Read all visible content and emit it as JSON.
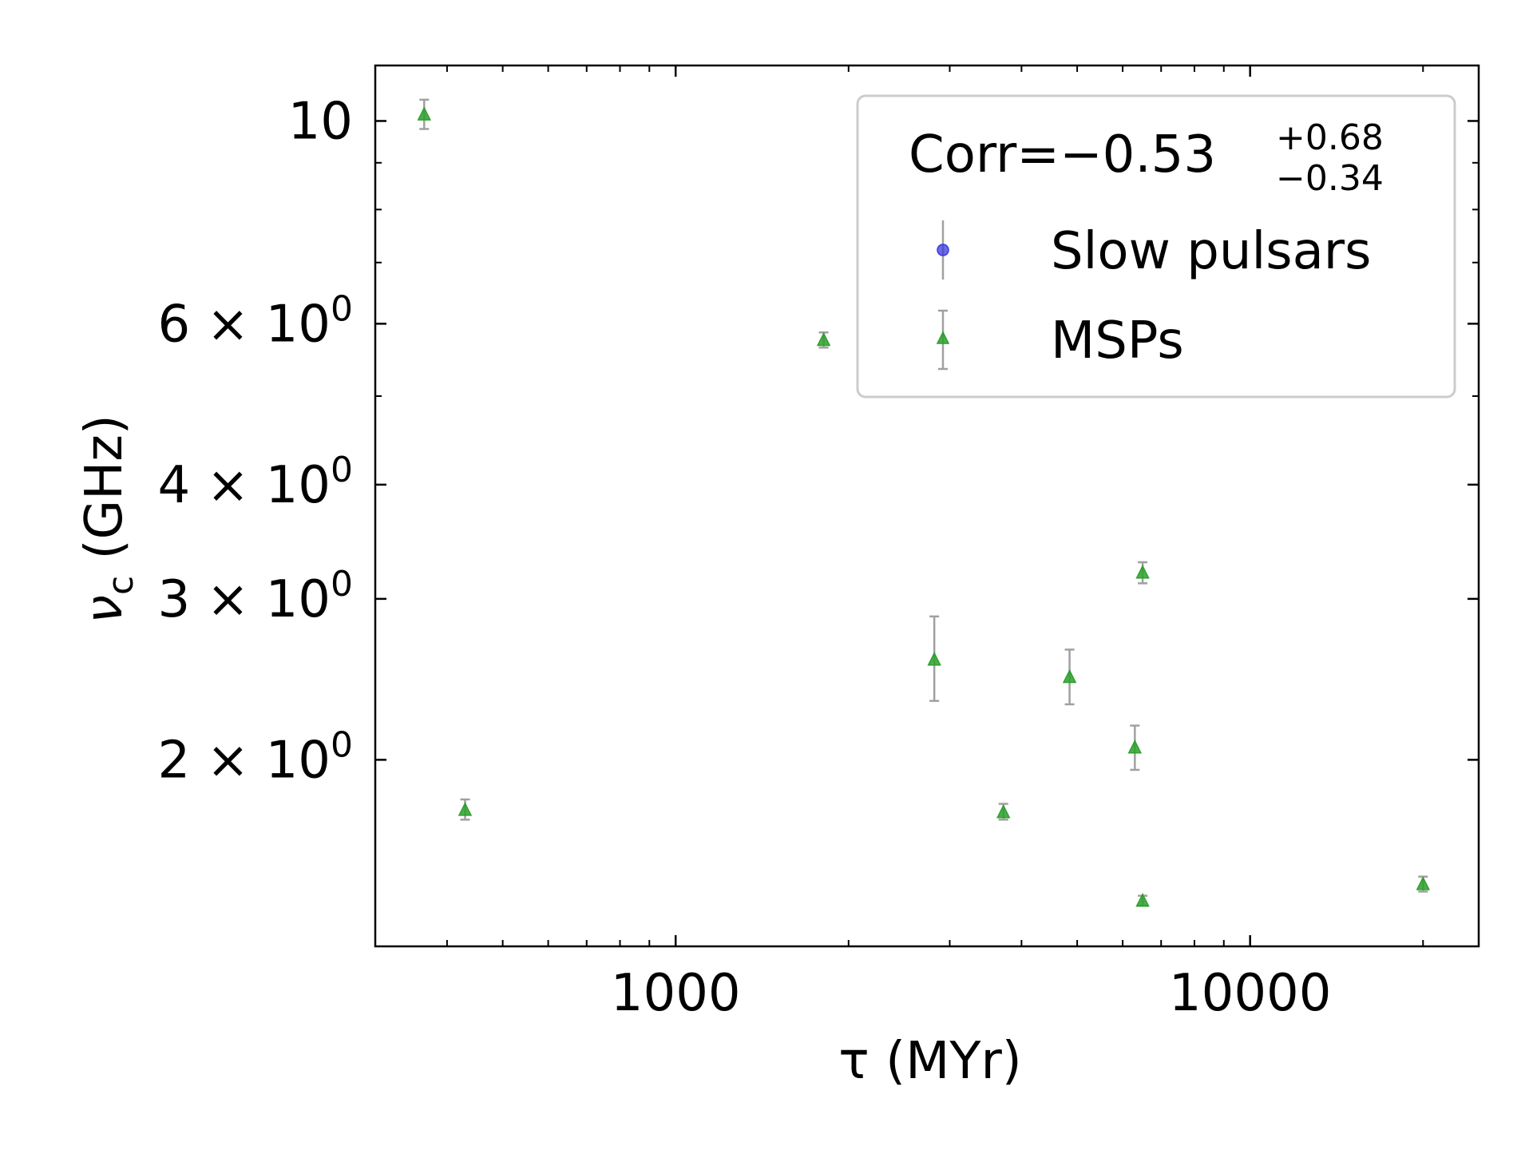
{
  "chart_data": {
    "type": "scatter",
    "title": "",
    "xlabel": "τ (MYr)",
    "ylabel": "ν",
    "ylabel_sub": "c",
    "ylabel_unit": " (GHz)",
    "x_scale": "log",
    "y_scale": "log",
    "xlim": [
      300,
      25000
    ],
    "ylim": [
      1.25,
      11.5
    ],
    "x_ticks": [
      {
        "value": 1000,
        "label": "1000"
      },
      {
        "value": 10000,
        "label": "10000"
      }
    ],
    "y_ticks": [
      {
        "value": 10,
        "base": "10",
        "exp": ""
      },
      {
        "value": 6,
        "base": "6 × 10",
        "exp": "0"
      },
      {
        "value": 4,
        "base": "4 × 10",
        "exp": "0"
      },
      {
        "value": 3,
        "base": "3 × 10",
        "exp": "0"
      },
      {
        "value": 2,
        "base": "2 × 10",
        "exp": "0"
      }
    ],
    "grid": false,
    "legend": {
      "placement": "top-right",
      "title": "Corr=−0.53",
      "title_sup": "+0.68",
      "title_sub": "−0.34"
    },
    "series": [
      {
        "name": "Slow pulsars",
        "marker": "circle",
        "color": "#3a3ae0",
        "points": []
      },
      {
        "name": "MSPs",
        "marker": "triangle",
        "color": "#2ca02c",
        "points": [
          {
            "x": 365,
            "y": 10.15,
            "yerr_low": 0.35,
            "yerr_high": 0.4
          },
          {
            "x": 430,
            "y": 1.76,
            "yerr_low": 0.04,
            "yerr_high": 0.05
          },
          {
            "x": 1810,
            "y": 5.75,
            "yerr_low": 0.1,
            "yerr_high": 0.12
          },
          {
            "x": 2820,
            "y": 2.57,
            "yerr_low": 0.25,
            "yerr_high": 0.3
          },
          {
            "x": 3720,
            "y": 1.75,
            "yerr_low": 0.03,
            "yerr_high": 0.04
          },
          {
            "x": 4850,
            "y": 2.46,
            "yerr_low": 0.16,
            "yerr_high": 0.18
          },
          {
            "x": 6300,
            "y": 2.06,
            "yerr_low": 0.11,
            "yerr_high": 0.12
          },
          {
            "x": 6500,
            "y": 3.2,
            "yerr_low": 0.08,
            "yerr_high": 0.09
          },
          {
            "x": 6500,
            "y": 1.4,
            "yerr_low": 0.015,
            "yerr_high": 0.02
          },
          {
            "x": 20000,
            "y": 1.46,
            "yerr_low": 0.025,
            "yerr_high": 0.03
          }
        ]
      }
    ],
    "colors": {
      "errorbar": "#a0a0a0",
      "axes": "#000000",
      "legend_border": "#cccccc"
    }
  }
}
